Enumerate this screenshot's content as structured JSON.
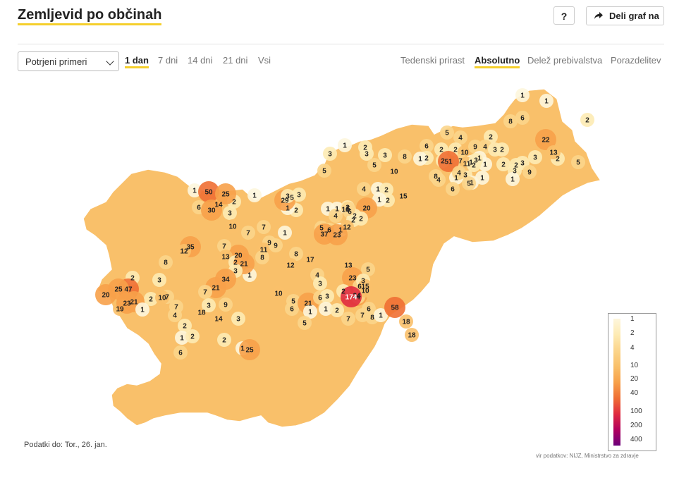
{
  "header": {
    "title": "Zemljevid po občinah",
    "help_label": "?",
    "share_label": "Deli graf na"
  },
  "controls": {
    "select_value": "Potrjeni primeri",
    "periods": [
      {
        "label": "1 dan",
        "active": true
      },
      {
        "label": "7 dni",
        "active": false
      },
      {
        "label": "14 dni",
        "active": false
      },
      {
        "label": "21 dni",
        "active": false
      },
      {
        "label": "Vsi",
        "active": false
      }
    ],
    "views": [
      {
        "label": "Tedenski prirast",
        "active": false
      },
      {
        "label": "Absolutno",
        "active": true
      },
      {
        "label": "Delež prebivalstva",
        "active": false
      },
      {
        "label": "Porazdelitev",
        "active": false
      }
    ]
  },
  "legend": {
    "labels": [
      "1",
      "2",
      "4",
      "10",
      "20",
      "40",
      "100",
      "200",
      "400"
    ],
    "colors": [
      "#fdf6dd",
      "#fdebb4",
      "#fbd58b",
      "#f9c06a",
      "#f7a14a",
      "#ef6f34",
      "#e02b3f",
      "#b1005d",
      "#6b007a"
    ]
  },
  "map_values": [
    1,
    1,
    6,
    2,
    8,
    5,
    4,
    2,
    22,
    6,
    2,
    2,
    10,
    9,
    4,
    3,
    2,
    1,
    2,
    2,
    3,
    2,
    2,
    7,
    1,
    51,
    1,
    1,
    3,
    8,
    1,
    1,
    4,
    11,
    2,
    3,
    2,
    3,
    3,
    13,
    5,
    9,
    1,
    4,
    5,
    6,
    1,
    3,
    3,
    8,
    1,
    2,
    3,
    5,
    5,
    1,
    10,
    15,
    4,
    2,
    2,
    1,
    20,
    16,
    6,
    2,
    1,
    1,
    5,
    4,
    2,
    2,
    2,
    6,
    1,
    12,
    23,
    5,
    2,
    1,
    5,
    29,
    3,
    3,
    1,
    2,
    14,
    1,
    50,
    25,
    6,
    30,
    3,
    10,
    7,
    7,
    1,
    9,
    11,
    9,
    37,
    8,
    17,
    12,
    4,
    3,
    13,
    23,
    5,
    6,
    24,
    2,
    4,
    10,
    6,
    3,
    174,
    15,
    8,
    20,
    7,
    13,
    2,
    1,
    21,
    3,
    34,
    21,
    7,
    35,
    12,
    8,
    3,
    7,
    2,
    2,
    47,
    25,
    20,
    19,
    23,
    21,
    1,
    10,
    7,
    4,
    2,
    1,
    6,
    2,
    18,
    3,
    14,
    9,
    3,
    2,
    1,
    25,
    10,
    5,
    6,
    21,
    1,
    5,
    6,
    3,
    1,
    2,
    7,
    7,
    8,
    1,
    58,
    18,
    18
  ],
  "footer": {
    "data_date": "Podatki do: Tor., 26. jan.",
    "source": "vir podatkov: NIJZ, Ministrstvo za zdravje"
  }
}
